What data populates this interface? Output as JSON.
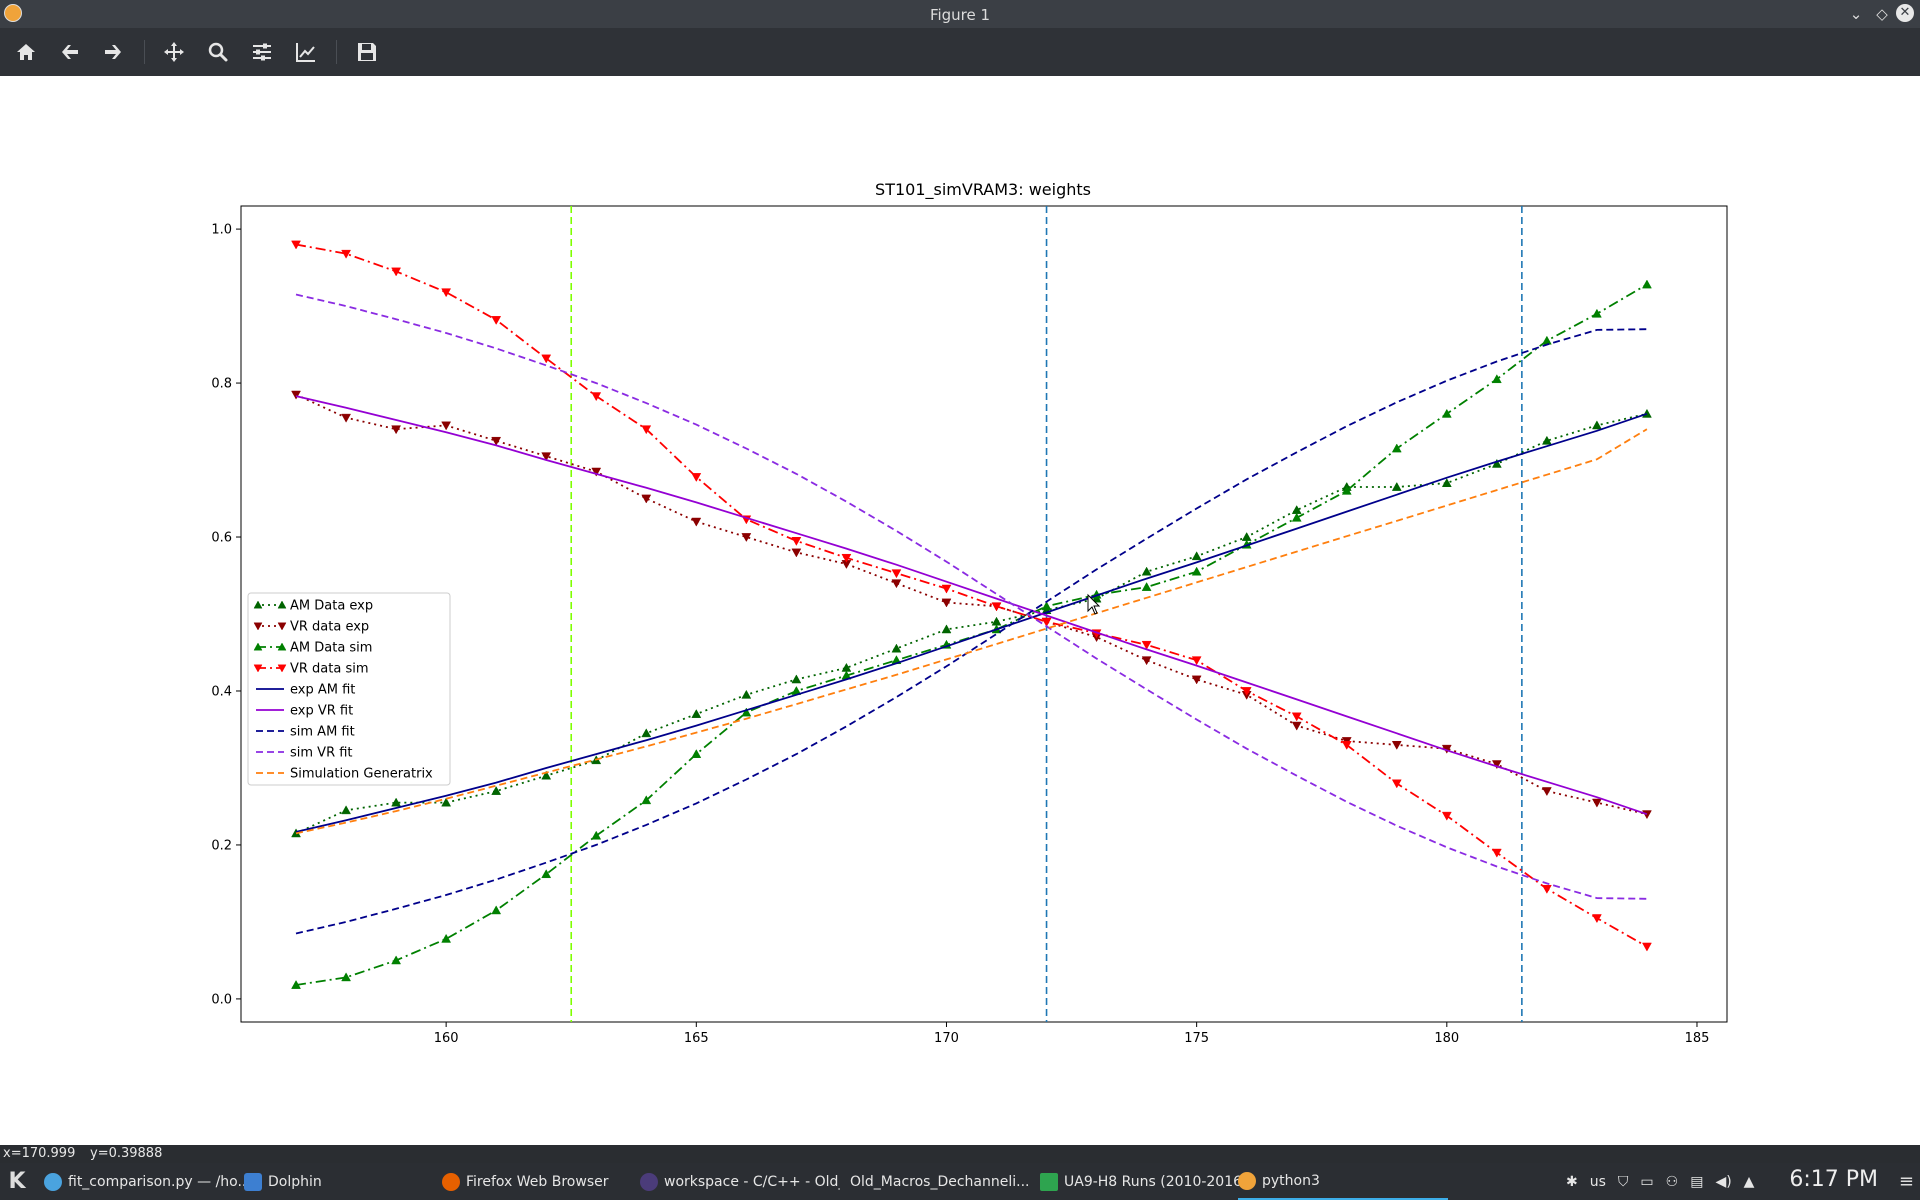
{
  "window": {
    "title": "Figure 1"
  },
  "toolbar": {
    "buttons": [
      "home-icon",
      "back-icon",
      "forward-icon",
      "pan-icon",
      "zoom-icon",
      "configure-subplots-icon",
      "edit-axis-icon",
      "save-icon"
    ]
  },
  "status": {
    "x_readout": "x=170.999",
    "y_readout": "y=0.39888"
  },
  "taskbar": {
    "tasks": [
      {
        "label": "fit_comparison.py — /ho..."
      },
      {
        "label": "Dolphin"
      },
      {
        "label": "Firefox Web Browser"
      },
      {
        "label": "workspace - C/C++ - Old_..."
      },
      {
        "label": "Old_Macros_Dechanneli..."
      },
      {
        "label": "UA9-H8 Runs (2010-2016..."
      },
      {
        "label": "python3"
      }
    ],
    "keyboard_layout": "us",
    "clock": "6:17 PM"
  },
  "chart_data": {
    "type": "line",
    "title": "ST101_simVRAM3: weights",
    "xlabel": "",
    "ylabel": "",
    "xlim": [
      155.9,
      185.6
    ],
    "ylim": [
      -0.03,
      1.03
    ],
    "xticks": [
      160,
      165,
      170,
      175,
      180,
      185
    ],
    "yticks": [
      0.0,
      0.2,
      0.4,
      0.6,
      0.8,
      1.0
    ],
    "grid": false,
    "legend_position": "center-left",
    "vlines": [
      {
        "x": 162.5,
        "color": "#7fff00",
        "style": "dashed"
      },
      {
        "x": 172.0,
        "color": "#1f77b4",
        "style": "dashed"
      },
      {
        "x": 181.5,
        "color": "#1f77b4",
        "style": "dashed"
      }
    ],
    "x": [
      157,
      158,
      159,
      160,
      161,
      162,
      163,
      164,
      165,
      166,
      167,
      168,
      169,
      170,
      171,
      172,
      173,
      174,
      175,
      176,
      177,
      178,
      179,
      180,
      181,
      182,
      183,
      184
    ],
    "series": [
      {
        "name": "AM Data exp",
        "color": "#006400",
        "dash": "2,4",
        "marker": "triangle-up",
        "values": [
          0.215,
          0.245,
          0.255,
          0.255,
          0.27,
          0.29,
          0.31,
          0.345,
          0.37,
          0.395,
          0.415,
          0.43,
          0.455,
          0.48,
          0.49,
          0.505,
          0.52,
          0.555,
          0.575,
          0.6,
          0.635,
          0.665,
          0.665,
          0.67,
          0.695,
          0.725,
          0.745,
          0.76
        ]
      },
      {
        "name": "VR data exp",
        "color": "#8b0000",
        "dash": "2,4",
        "marker": "triangle-down",
        "values": [
          0.785,
          0.755,
          0.74,
          0.745,
          0.725,
          0.705,
          0.685,
          0.65,
          0.62,
          0.6,
          0.58,
          0.565,
          0.54,
          0.515,
          0.51,
          0.49,
          0.47,
          0.44,
          0.415,
          0.395,
          0.355,
          0.335,
          0.33,
          0.325,
          0.305,
          0.27,
          0.255,
          0.24
        ]
      },
      {
        "name": "AM Data sim",
        "color": "#008000",
        "dash": "10,4,2,4",
        "marker": "triangle-up",
        "values": [
          0.018,
          0.028,
          0.05,
          0.078,
          0.115,
          0.162,
          0.212,
          0.258,
          0.318,
          0.372,
          0.4,
          0.42,
          0.44,
          0.46,
          0.48,
          0.51,
          0.525,
          0.535,
          0.555,
          0.59,
          0.625,
          0.66,
          0.715,
          0.76,
          0.805,
          0.855,
          0.89,
          0.928
        ]
      },
      {
        "name": "VR data sim",
        "color": "#ff0000",
        "dash": "10,4,2,4",
        "marker": "triangle-down",
        "values": [
          0.98,
          0.968,
          0.945,
          0.918,
          0.882,
          0.832,
          0.783,
          0.74,
          0.678,
          0.623,
          0.595,
          0.573,
          0.553,
          0.533,
          0.51,
          0.49,
          0.475,
          0.46,
          0.44,
          0.4,
          0.367,
          0.33,
          0.28,
          0.238,
          0.19,
          0.143,
          0.105,
          0.068
        ]
      },
      {
        "name": "exp AM fit",
        "color": "#00008b",
        "dash": "",
        "values": [
          0.217,
          0.232,
          0.248,
          0.264,
          0.281,
          0.3,
          0.318,
          0.336,
          0.355,
          0.375,
          0.395,
          0.415,
          0.436,
          0.458,
          0.48,
          0.502,
          0.524,
          0.546,
          0.567,
          0.589,
          0.611,
          0.633,
          0.655,
          0.677,
          0.698,
          0.718,
          0.738,
          0.76
        ]
      },
      {
        "name": "exp VR fit",
        "color": "#9400d3",
        "dash": "",
        "values": [
          0.783,
          0.768,
          0.752,
          0.736,
          0.719,
          0.7,
          0.682,
          0.664,
          0.645,
          0.625,
          0.605,
          0.585,
          0.564,
          0.542,
          0.52,
          0.498,
          0.476,
          0.454,
          0.433,
          0.411,
          0.389,
          0.367,
          0.345,
          0.323,
          0.302,
          0.282,
          0.262,
          0.24
        ]
      },
      {
        "name": "sim AM fit",
        "color": "#00008b",
        "dash": "7,4",
        "values": [
          0.085,
          0.1,
          0.117,
          0.135,
          0.155,
          0.177,
          0.2,
          0.226,
          0.254,
          0.285,
          0.318,
          0.354,
          0.392,
          0.432,
          0.474,
          0.516,
          0.558,
          0.598,
          0.637,
          0.675,
          0.71,
          0.744,
          0.775,
          0.803,
          0.828,
          0.85,
          0.869,
          0.87
        ]
      },
      {
        "name": "sim VR fit",
        "color": "#8a2be2",
        "dash": "7,4",
        "values": [
          0.915,
          0.9,
          0.883,
          0.865,
          0.845,
          0.823,
          0.8,
          0.774,
          0.746,
          0.715,
          0.682,
          0.646,
          0.608,
          0.568,
          0.526,
          0.484,
          0.442,
          0.402,
          0.363,
          0.325,
          0.29,
          0.256,
          0.225,
          0.197,
          0.172,
          0.15,
          0.131,
          0.13
        ]
      },
      {
        "name": "Simulation Generatrix",
        "color": "#ff7f0e",
        "dash": "7,4",
        "values": [
          0.215,
          0.229,
          0.244,
          0.26,
          0.277,
          0.294,
          0.311,
          0.328,
          0.346,
          0.364,
          0.383,
          0.402,
          0.421,
          0.441,
          0.461,
          0.481,
          0.501,
          0.521,
          0.541,
          0.561,
          0.581,
          0.601,
          0.621,
          0.641,
          0.661,
          0.681,
          0.701,
          0.74
        ]
      }
    ]
  }
}
